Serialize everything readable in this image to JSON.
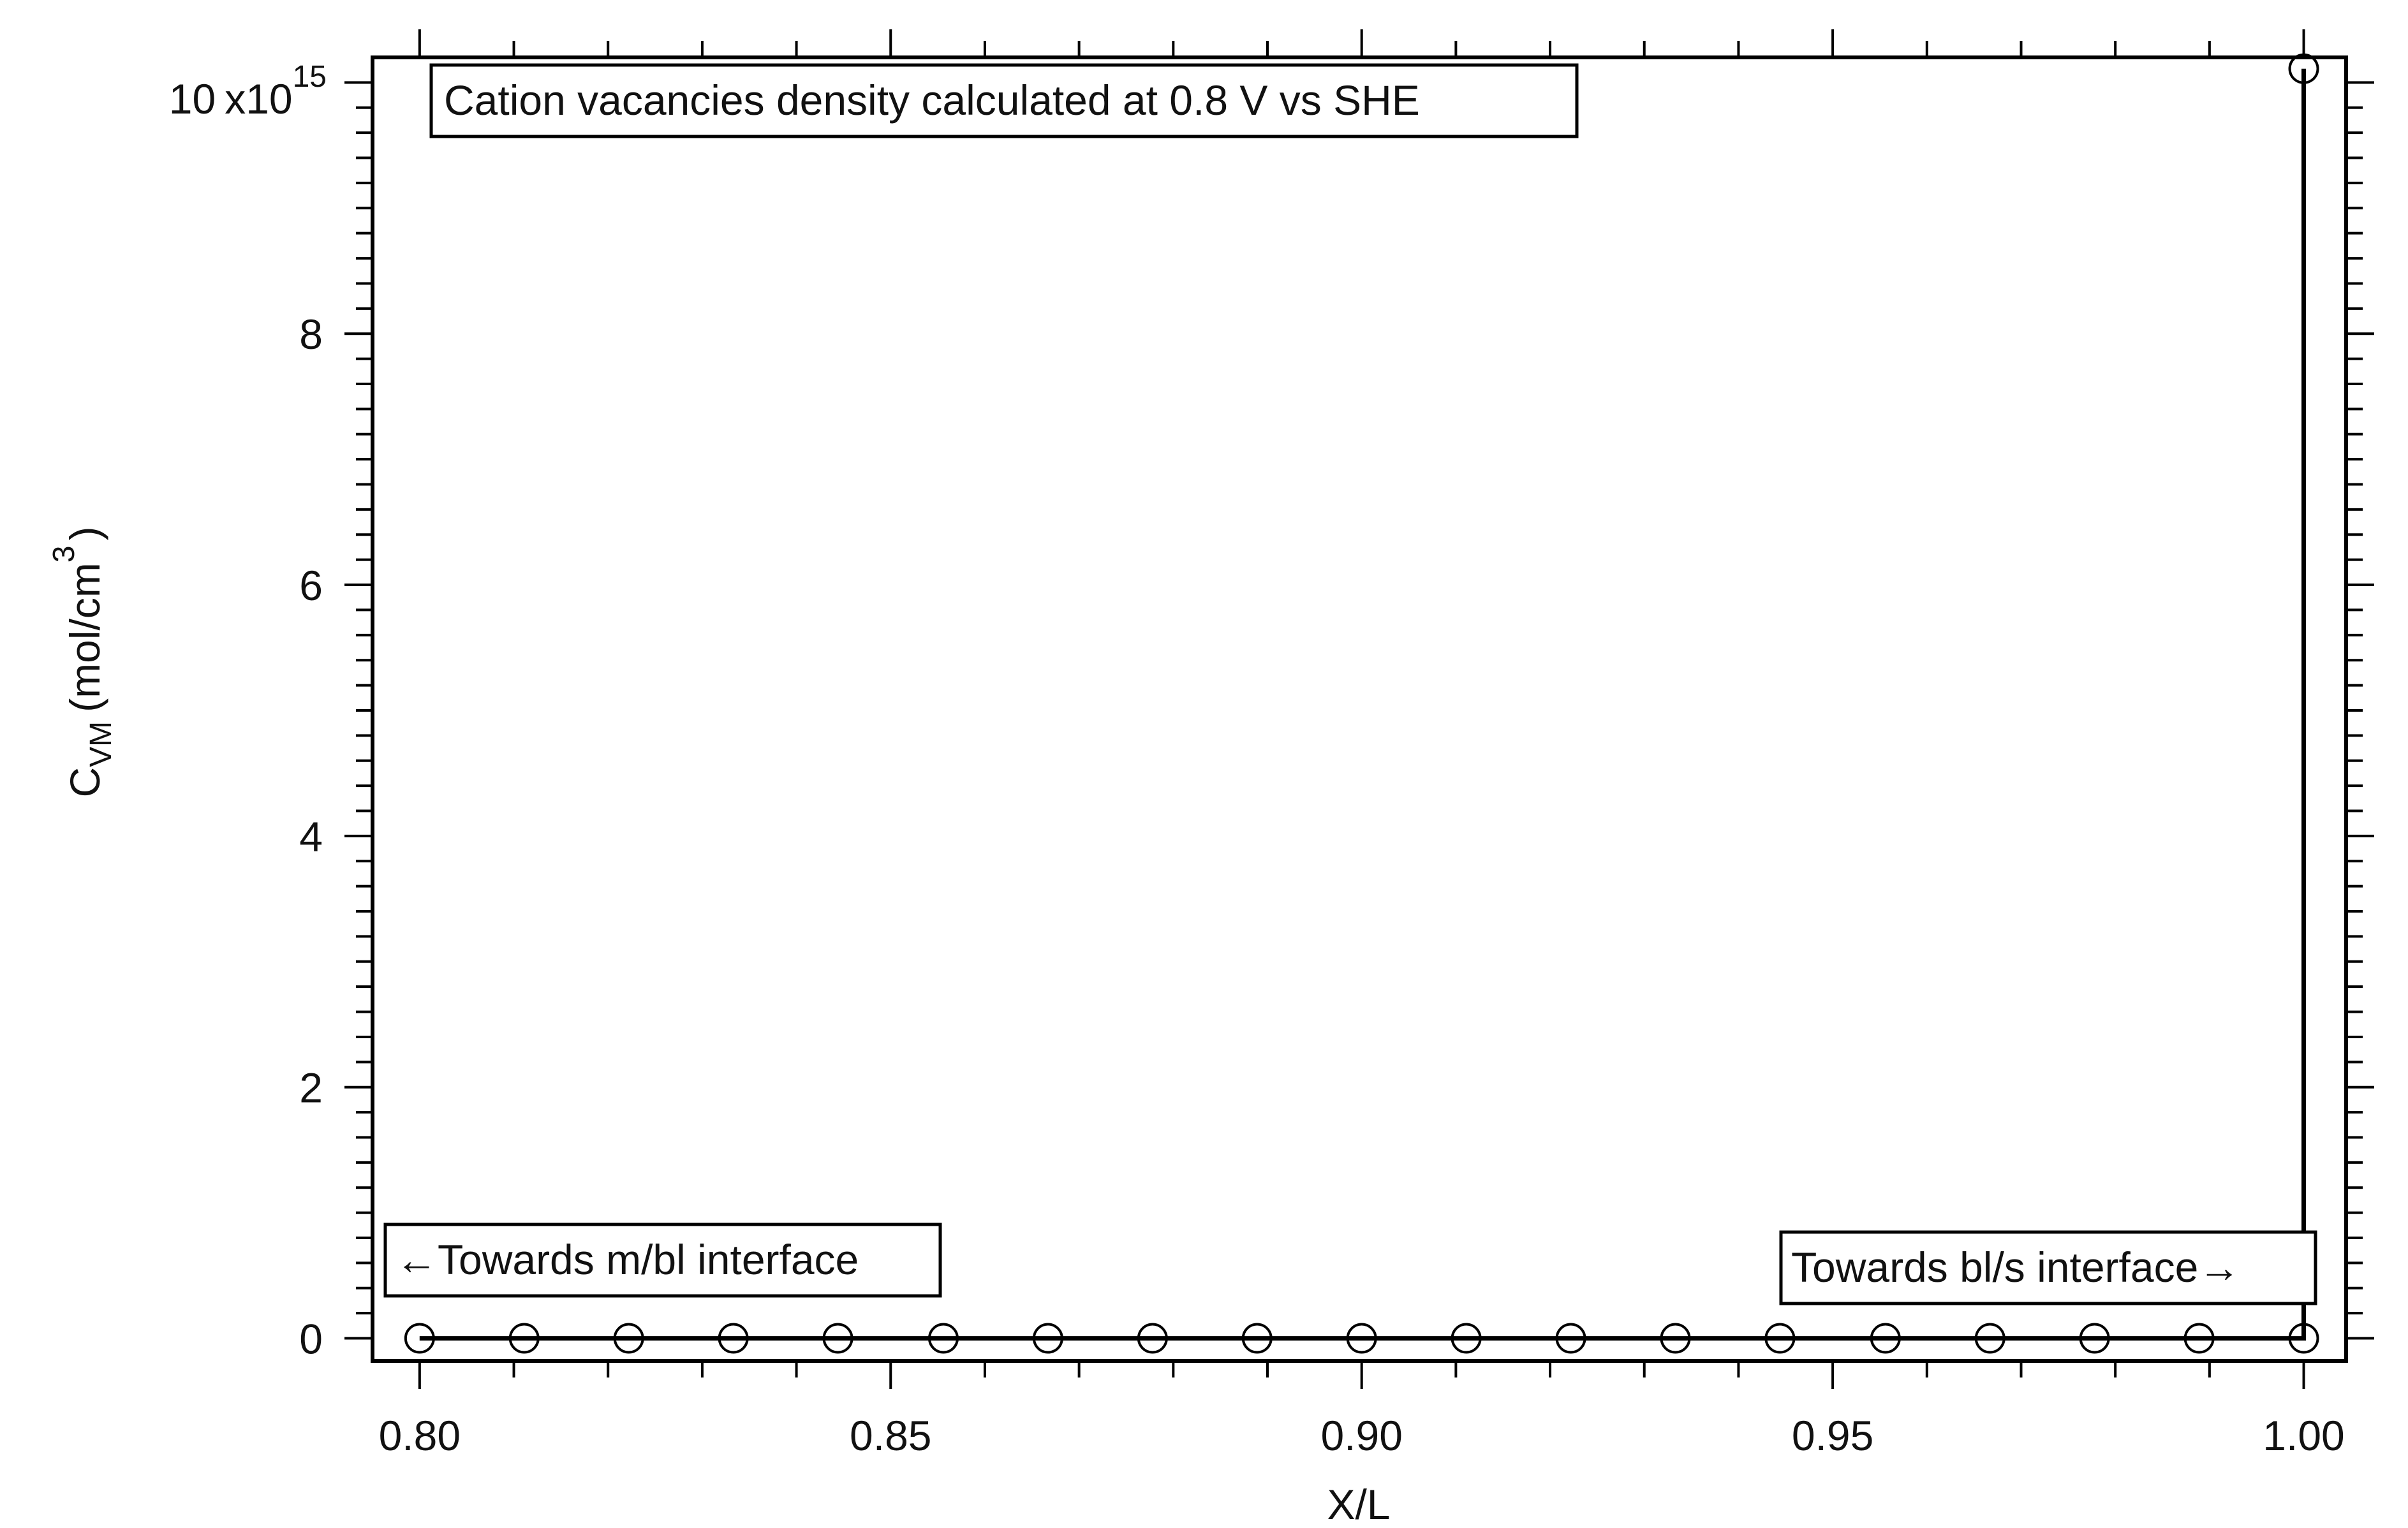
{
  "chart_data": {
    "type": "line",
    "title": "",
    "xlabel": "X/L",
    "ylabel": {
      "main": "C",
      "subscript": "VM",
      "unit_prefix": "(mol/cm",
      "unit_superscript": "3",
      "unit_suffix": ")"
    },
    "xlim": [
      0.795,
      1.0045
    ],
    "ylim": [
      -180000000000000.0,
      1.02e+16
    ],
    "x_ticks": [
      0.8,
      0.85,
      0.9,
      0.95,
      1.0
    ],
    "x_tick_labels": [
      "0.80",
      "0.85",
      "0.90",
      "0.95",
      "1.00"
    ],
    "y_ticks": [
      0,
      2000000000000000.0,
      4000000000000000.0,
      6000000000000000.0,
      8000000000000000.0,
      1e+16
    ],
    "y_tick_labels": [
      "0",
      "2",
      "4",
      "6",
      "8",
      "10"
    ],
    "y_exponent_label": {
      "base": "x10",
      "exponent": "15"
    },
    "grid": false,
    "marker": "open-circle",
    "series": [
      {
        "x": [
          0.8,
          0.8111,
          0.8222,
          0.8333,
          0.8444,
          0.8556,
          0.8667,
          0.8778,
          0.8889,
          0.9,
          0.9111,
          0.9222,
          0.9333,
          0.9444,
          0.9556,
          0.9667,
          0.9778,
          0.9889,
          1.0,
          1.0
        ],
        "y": [
          0,
          0,
          0,
          0,
          0,
          0,
          0,
          0,
          0,
          0,
          0,
          0,
          0,
          0,
          0,
          0,
          0,
          0,
          0,
          1.011e+16
        ]
      }
    ],
    "annotations": [
      {
        "id": "top",
        "text": "Cation vacancies density calculated at 0.8 V vs SHE"
      },
      {
        "id": "left",
        "text": "←Towards m/bl interface"
      },
      {
        "id": "right",
        "text": "Towards bl/s interface→"
      }
    ],
    "colors": {
      "line": "#000000",
      "background": "#ffffff"
    }
  }
}
